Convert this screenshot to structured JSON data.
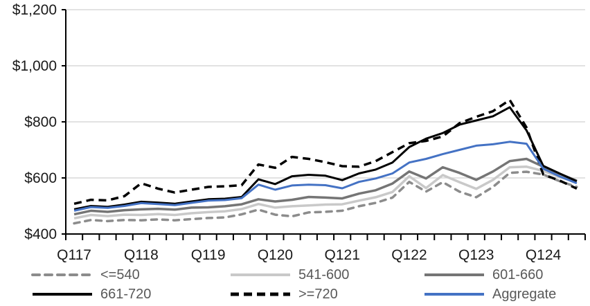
{
  "chart_data": {
    "type": "line",
    "title": "",
    "x_categories": [
      "Q117",
      "Q217",
      "Q317",
      "Q417",
      "Q118",
      "Q218",
      "Q318",
      "Q418",
      "Q119",
      "Q219",
      "Q319",
      "Q419",
      "Q120",
      "Q220",
      "Q320",
      "Q420",
      "Q121",
      "Q221",
      "Q321",
      "Q421",
      "Q122",
      "Q222",
      "Q322",
      "Q422",
      "Q123",
      "Q223",
      "Q323",
      "Q423",
      "Q124",
      "Q224",
      "Q324"
    ],
    "x_tick_labels": [
      "Q117",
      "Q118",
      "Q119",
      "Q120",
      "Q121",
      "Q122",
      "Q123",
      "Q124"
    ],
    "x_label_every": 4,
    "y_ticks": [
      400,
      600,
      800,
      1000,
      1200
    ],
    "y_tick_labels": [
      "$400",
      "$600",
      "$800",
      "$1,000",
      "$1,200"
    ],
    "ylim": [
      400,
      1200
    ],
    "grid": "horizontal",
    "legend_position": "bottom",
    "series": [
      {
        "name": "<=540",
        "color": "#8C8C8C",
        "style": "dashed-round",
        "values": [
          438,
          450,
          446,
          450,
          449,
          452,
          449,
          453,
          457,
          459,
          470,
          487,
          469,
          463,
          477,
          479,
          483,
          499,
          511,
          530,
          586,
          551,
          585,
          551,
          531,
          568,
          618,
          622,
          612,
          588,
          568
        ]
      },
      {
        "name": "541-600",
        "color": "#C9C9C9",
        "style": "solid",
        "values": [
          456,
          468,
          464,
          469,
          468,
          471,
          468,
          474,
          478,
          481,
          489,
          507,
          494,
          499,
          502,
          505,
          506,
          519,
          531,
          550,
          606,
          564,
          610,
          585,
          561,
          593,
          638,
          640,
          625,
          603,
          585
        ]
      },
      {
        "name": "601-660",
        "color": "#757575",
        "style": "solid",
        "values": [
          470,
          483,
          479,
          485,
          488,
          490,
          487,
          494,
          495,
          499,
          506,
          524,
          516,
          522,
          532,
          530,
          527,
          544,
          556,
          580,
          623,
          598,
          638,
          618,
          593,
          623,
          660,
          668,
          640,
          614,
          590
        ]
      },
      {
        "name": "661-720",
        "color": "#000000",
        "style": "solid",
        "values": [
          488,
          500,
          497,
          505,
          515,
          512,
          508,
          516,
          524,
          526,
          532,
          595,
          578,
          606,
          611,
          608,
          592,
          616,
          630,
          655,
          710,
          740,
          760,
          790,
          805,
          820,
          852,
          770,
          643,
          615,
          588
        ]
      },
      {
        "name": ">=720",
        "color": "#000000",
        "style": "dashed",
        "values": [
          508,
          522,
          520,
          535,
          581,
          562,
          548,
          558,
          568,
          570,
          574,
          648,
          636,
          675,
          668,
          656,
          642,
          640,
          660,
          692,
          724,
          732,
          748,
          795,
          818,
          838,
          878,
          780,
          612,
          590,
          562
        ]
      },
      {
        "name": "Aggregate",
        "color": "#4472C4",
        "style": "solid",
        "values": [
          483,
          496,
          493,
          500,
          510,
          507,
          503,
          511,
          519,
          521,
          528,
          576,
          558,
          573,
          576,
          574,
          563,
          586,
          598,
          616,
          655,
          668,
          685,
          700,
          715,
          720,
          729,
          722,
          633,
          605,
          581
        ]
      }
    ]
  },
  "colors": {
    "axis": "#000000",
    "grid": "#D9D9D9",
    "tick_text": "#1A1A1A",
    "legend_text": "#595959"
  }
}
